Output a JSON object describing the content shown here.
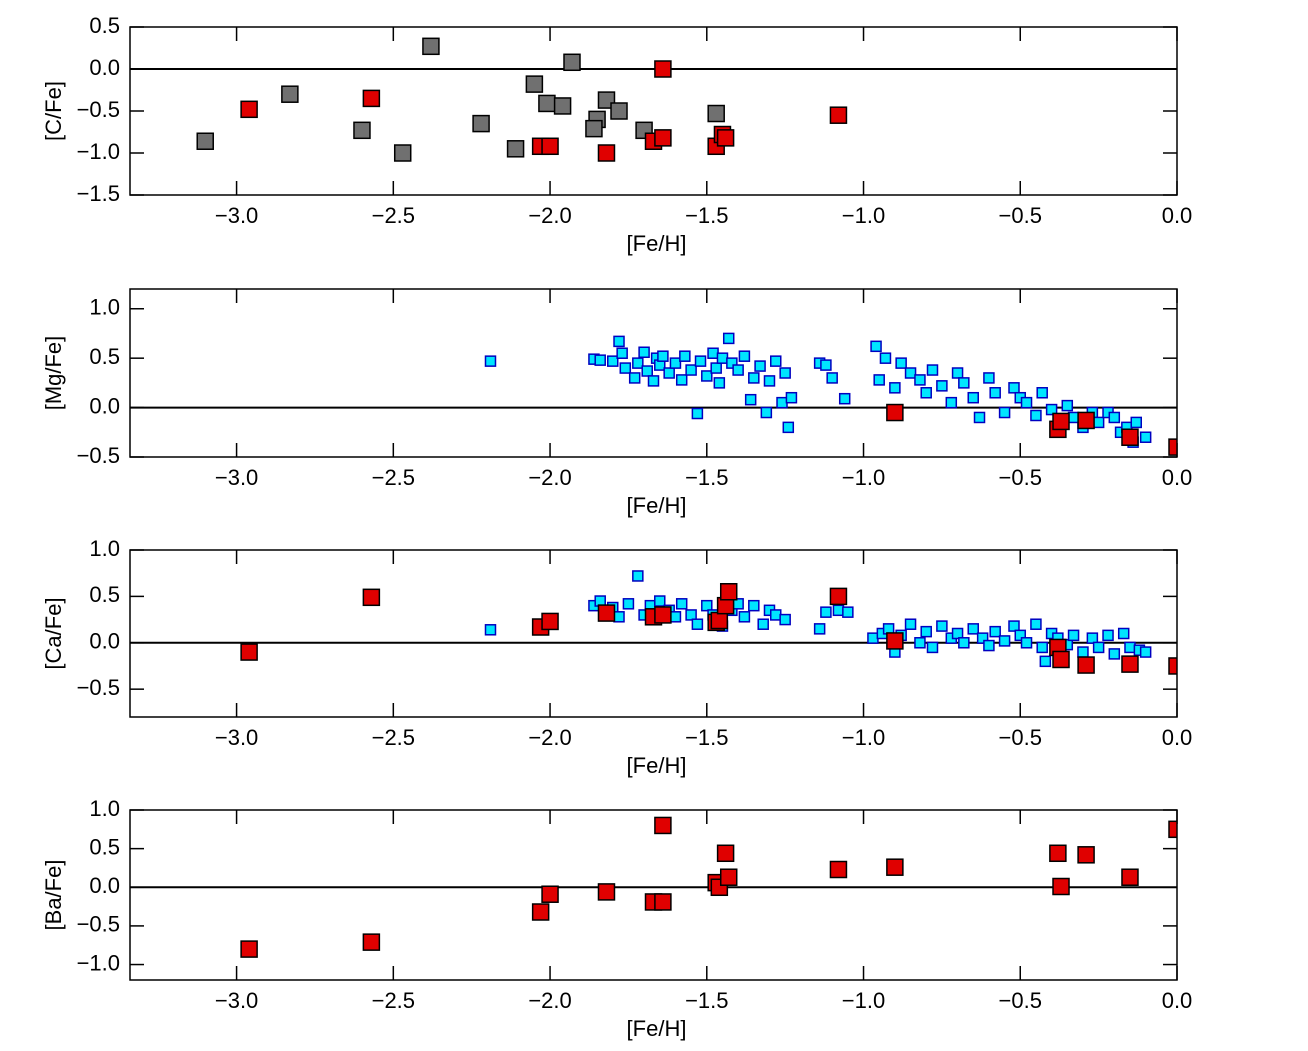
{
  "chart_data": [
    {
      "type": "scatter",
      "xlabel": "[Fe/H]",
      "ylabel": "[C/Fe]",
      "xlim": [
        -3.34,
        0.0
      ],
      "ylim": [
        -1.5,
        0.5
      ],
      "xticks": [
        {
          "value": -3.0,
          "label": "−3.0"
        },
        {
          "value": -2.5,
          "label": "−2.5"
        },
        {
          "value": -2.0,
          "label": "−2.0"
        },
        {
          "value": -1.5,
          "label": "−1.5"
        },
        {
          "value": -1.0,
          "label": "−1.0"
        },
        {
          "value": -0.5,
          "label": "−0.5"
        },
        {
          "value": 0.0,
          "label": "0.0"
        }
      ],
      "yticks": [
        {
          "value": -1.5,
          "label": "−1.5"
        },
        {
          "value": -1.0,
          "label": "−1.0"
        },
        {
          "value": -0.5,
          "label": "−0.5"
        },
        {
          "value": 0.0,
          "label": "0.0"
        },
        0.5
      ],
      "hline": 0,
      "series": [
        {
          "color": "#707070",
          "edgecolor": "#000000",
          "x": [
            -3.1,
            -2.83,
            -2.6,
            -2.47,
            -2.38,
            -2.22,
            -2.11,
            -2.05,
            -2.01,
            -1.96,
            -1.93,
            -1.82,
            -1.85,
            -1.86,
            -1.78,
            -1.7,
            -1.47
          ],
          "values": [
            -0.86,
            -0.3,
            -0.73,
            -1.0,
            0.27,
            -0.65,
            -0.95,
            -0.18,
            -0.41,
            -0.44,
            0.08,
            -0.37,
            -0.6,
            -0.71,
            -0.5,
            -0.73,
            -0.53
          ]
        },
        {
          "color": "#e00000",
          "edgecolor": "#000000",
          "x": [
            -2.96,
            -2.57,
            -2.03,
            -2.0,
            -1.82,
            -1.67,
            -1.64,
            -1.64,
            -1.47,
            -1.45,
            -1.44,
            -1.08
          ],
          "values": [
            -0.48,
            -0.35,
            -0.92,
            -0.92,
            -1.0,
            -0.86,
            -0.82,
            0.0,
            -0.92,
            -0.78,
            -0.82,
            -0.55
          ]
        }
      ]
    },
    {
      "type": "scatter",
      "xlabel": "[Fe/H]",
      "ylabel": "[Mg/Fe]",
      "xlim": [
        -3.34,
        0.0
      ],
      "ylim": [
        -0.5,
        1.2
      ],
      "xticks": [
        {
          "value": -3.0,
          "label": "−3.0"
        },
        {
          "value": -2.5,
          "label": "−2.5"
        },
        {
          "value": -2.0,
          "label": "−2.0"
        },
        {
          "value": -1.5,
          "label": "−1.5"
        },
        {
          "value": -1.0,
          "label": "−1.0"
        },
        {
          "value": -0.5,
          "label": "−0.5"
        },
        {
          "value": 0.0,
          "label": "0.0"
        }
      ],
      "yticks": [
        {
          "value": -0.5,
          "label": "−0.5"
        },
        {
          "value": 0.0,
          "label": "0.0"
        },
        0.5,
        {
          "value": 1.0,
          "label": "1.0"
        }
      ],
      "hline": 0,
      "series": [
        {
          "color": "#00e5ff",
          "edgecolor": "#0000c0",
          "x": [
            -2.19,
            -1.86,
            -1.84,
            -1.8,
            -1.78,
            -1.77,
            -1.76,
            -1.73,
            -1.72,
            -1.7,
            -1.69,
            -1.67,
            -1.66,
            -1.65,
            -1.64,
            -1.62,
            -1.6,
            -1.58,
            -1.57,
            -1.55,
            -1.53,
            -1.52,
            -1.5,
            -1.48,
            -1.47,
            -1.46,
            -1.45,
            -1.43,
            -1.42,
            -1.4,
            -1.38,
            -1.36,
            -1.35,
            -1.33,
            -1.31,
            -1.3,
            -1.28,
            -1.26,
            -1.25,
            -1.24,
            -1.23,
            -1.14,
            -1.12,
            -1.1,
            -1.06,
            -0.96,
            -0.95,
            -0.93,
            -0.9,
            -0.88,
            -0.85,
            -0.82,
            -0.8,
            -0.78,
            -0.75,
            -0.72,
            -0.7,
            -0.68,
            -0.65,
            -0.63,
            -0.6,
            -0.58,
            -0.55,
            -0.52,
            -0.5,
            -0.48,
            -0.45,
            -0.43,
            -0.4,
            -0.37,
            -0.35,
            -0.33,
            -0.3,
            -0.27,
            -0.25,
            -0.22,
            -0.2,
            -0.18,
            -0.16,
            -0.14,
            -0.13,
            -0.1
          ],
          "values": [
            0.47,
            0.49,
            0.48,
            0.47,
            0.67,
            0.55,
            0.4,
            0.3,
            0.45,
            0.56,
            0.37,
            0.27,
            0.5,
            0.43,
            0.52,
            0.35,
            0.45,
            0.28,
            0.52,
            0.38,
            -0.06,
            0.47,
            0.32,
            0.55,
            0.4,
            0.25,
            0.5,
            0.7,
            0.45,
            0.38,
            0.52,
            0.08,
            0.3,
            0.42,
            -0.05,
            0.27,
            0.47,
            0.05,
            0.35,
            -0.2,
            0.1,
            0.45,
            0.43,
            0.3,
            0.09,
            0.62,
            0.28,
            0.5,
            0.2,
            0.45,
            0.35,
            0.28,
            0.15,
            0.38,
            0.22,
            0.05,
            0.35,
            0.25,
            0.1,
            -0.1,
            0.3,
            0.15,
            -0.05,
            0.2,
            0.1,
            0.05,
            -0.08,
            0.15,
            -0.02,
            -0.12,
            0.02,
            -0.1,
            -0.2,
            -0.05,
            -0.15,
            -0.05,
            -0.1,
            -0.25,
            -0.2,
            -0.35,
            -0.15,
            -0.3
          ]
        },
        {
          "color": "#e00000",
          "edgecolor": "#000000",
          "x": [
            -0.9,
            -0.38,
            -0.37,
            -0.29,
            -0.15,
            0.0
          ],
          "values": [
            -0.05,
            -0.22,
            -0.14,
            -0.13,
            -0.3,
            -0.4
          ]
        }
      ]
    },
    {
      "type": "scatter",
      "xlabel": "[Fe/H]",
      "ylabel": "[Ca/Fe]",
      "xlim": [
        -3.34,
        0.0
      ],
      "ylim": [
        -0.8,
        1.0
      ],
      "xticks": [
        {
          "value": -3.0,
          "label": "−3.0"
        },
        {
          "value": -2.5,
          "label": "−2.5"
        },
        {
          "value": -2.0,
          "label": "−2.0"
        },
        {
          "value": -1.5,
          "label": "−1.5"
        },
        {
          "value": -1.0,
          "label": "−1.0"
        },
        {
          "value": -0.5,
          "label": "−0.5"
        },
        {
          "value": 0.0,
          "label": "0.0"
        }
      ],
      "yticks": [
        {
          "value": -0.5,
          "label": "−0.5"
        },
        {
          "value": 0.0,
          "label": "0.0"
        },
        0.5,
        {
          "value": 1.0,
          "label": "1.0"
        }
      ],
      "hline": 0,
      "series": [
        {
          "color": "#00e5ff",
          "edgecolor": "#0000c0",
          "x": [
            -2.19,
            -1.86,
            -1.84,
            -1.8,
            -1.78,
            -1.75,
            -1.72,
            -1.7,
            -1.68,
            -1.65,
            -1.62,
            -1.6,
            -1.58,
            -1.55,
            -1.53,
            -1.5,
            -1.48,
            -1.45,
            -1.42,
            -1.4,
            -1.38,
            -1.35,
            -1.32,
            -1.3,
            -1.28,
            -1.25,
            -1.14,
            -1.12,
            -1.08,
            -1.05,
            -0.97,
            -0.94,
            -0.92,
            -0.9,
            -0.88,
            -0.85,
            -0.82,
            -0.8,
            -0.78,
            -0.75,
            -0.72,
            -0.7,
            -0.68,
            -0.65,
            -0.62,
            -0.6,
            -0.58,
            -0.55,
            -0.52,
            -0.5,
            -0.48,
            -0.45,
            -0.43,
            -0.42,
            -0.4,
            -0.38,
            -0.35,
            -0.33,
            -0.3,
            -0.27,
            -0.25,
            -0.22,
            -0.2,
            -0.17,
            -0.15,
            -0.12,
            -0.1
          ],
          "values": [
            0.14,
            0.4,
            0.45,
            0.38,
            0.28,
            0.42,
            0.72,
            0.3,
            0.4,
            0.45,
            0.35,
            0.28,
            0.42,
            0.3,
            0.2,
            0.4,
            0.3,
            0.18,
            0.35,
            0.42,
            0.28,
            0.4,
            0.2,
            0.35,
            0.3,
            0.25,
            0.15,
            0.33,
            0.35,
            0.33,
            0.05,
            0.1,
            0.15,
            -0.1,
            0.08,
            0.2,
            0.0,
            0.12,
            -0.05,
            0.18,
            0.05,
            0.1,
            0.0,
            0.15,
            0.05,
            -0.03,
            0.12,
            0.02,
            0.18,
            0.08,
            0.0,
            0.2,
            -0.05,
            -0.2,
            0.1,
            0.05,
            -0.02,
            0.08,
            -0.1,
            0.05,
            -0.05,
            0.08,
            -0.12,
            0.1,
            -0.05,
            -0.08,
            -0.1
          ]
        },
        {
          "color": "#e00000",
          "edgecolor": "#000000",
          "x": [
            -2.96,
            -2.57,
            -2.03,
            -2.0,
            -1.82,
            -1.67,
            -1.64,
            -1.47,
            -1.46,
            -1.44,
            -1.43,
            -1.08,
            -0.9,
            -0.38,
            -0.37,
            -0.29,
            -0.15,
            0.0
          ],
          "values": [
            -0.1,
            0.49,
            0.17,
            0.23,
            0.32,
            0.28,
            0.3,
            0.22,
            0.24,
            0.4,
            0.55,
            0.5,
            0.02,
            -0.05,
            -0.18,
            -0.24,
            -0.23,
            -0.25
          ]
        }
      ]
    },
    {
      "type": "scatter",
      "xlabel": "[Fe/H]",
      "ylabel": "[Ba/Fe]",
      "xlim": [
        -3.34,
        0.0
      ],
      "ylim": [
        -1.2,
        1.0
      ],
      "xticks": [
        {
          "value": -3.0,
          "label": "−3.0"
        },
        {
          "value": -2.5,
          "label": "−2.5"
        },
        {
          "value": -2.0,
          "label": "−2.0"
        },
        {
          "value": -1.5,
          "label": "−1.5"
        },
        {
          "value": -1.0,
          "label": "−1.0"
        },
        {
          "value": -0.5,
          "label": "−0.5"
        },
        {
          "value": 0.0,
          "label": "0.0"
        }
      ],
      "yticks": [
        {
          "value": -1.0,
          "label": "−1.0"
        },
        {
          "value": -0.5,
          "label": "−0.5"
        },
        {
          "value": 0.0,
          "label": "0.0"
        },
        0.5,
        {
          "value": 1.0,
          "label": "1.0"
        }
      ],
      "hline": 0,
      "series": [
        {
          "color": "#e00000",
          "edgecolor": "#000000",
          "x": [
            -2.96,
            -2.57,
            -2.03,
            -2.0,
            -1.82,
            -1.67,
            -1.64,
            -1.64,
            -1.47,
            -1.46,
            -1.44,
            -1.43,
            -1.08,
            -0.9,
            -0.38,
            -0.37,
            -0.29,
            -0.15,
            0.0
          ],
          "values": [
            -0.8,
            -0.71,
            -0.32,
            -0.09,
            -0.06,
            -0.19,
            -0.19,
            0.8,
            0.06,
            0.0,
            0.44,
            0.13,
            0.23,
            0.26,
            0.44,
            0.01,
            0.42,
            0.13,
            0.75
          ]
        }
      ]
    }
  ]
}
